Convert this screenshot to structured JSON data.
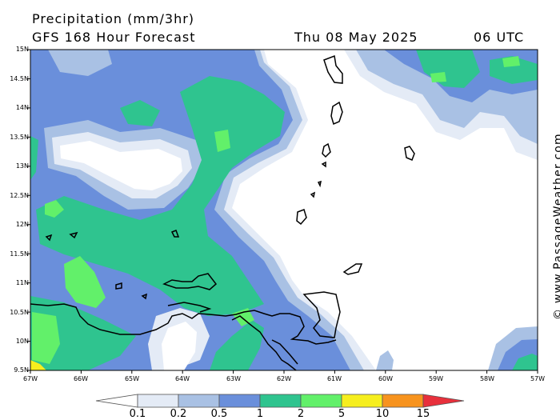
{
  "header": {
    "title": "Precipitation (mm/3hr)",
    "subtitle": "GFS 168 Hour Forecast",
    "valid_date": "Thu 08 May 2025",
    "valid_time": "06 UTC"
  },
  "map": {
    "lat_labels": [
      "15N",
      "14.5N",
      "14N",
      "13.5N",
      "13N",
      "12.5N",
      "12N",
      "11.5N",
      "11N",
      "10.5N",
      "10N",
      "9.5N"
    ],
    "lon_labels": [
      "67W",
      "66W",
      "65W",
      "64W",
      "63W",
      "62W",
      "61W",
      "60W",
      "59W",
      "58W",
      "57W"
    ]
  },
  "legend": {
    "ticks": [
      "0.1",
      "0.2",
      "0.5",
      "1",
      "2",
      "5",
      "10",
      "15"
    ],
    "colors": {
      "c01": "#e4ebf6",
      "c02": "#a9c1e4",
      "c05": "#6a8fdb",
      "c1": "#2fc48f",
      "c2": "#62f06a",
      "c5": "#f6ee1e",
      "c10": "#f7931e",
      "c15": "#e8303c"
    }
  },
  "watermark": "© www.PassageWeather.com"
}
